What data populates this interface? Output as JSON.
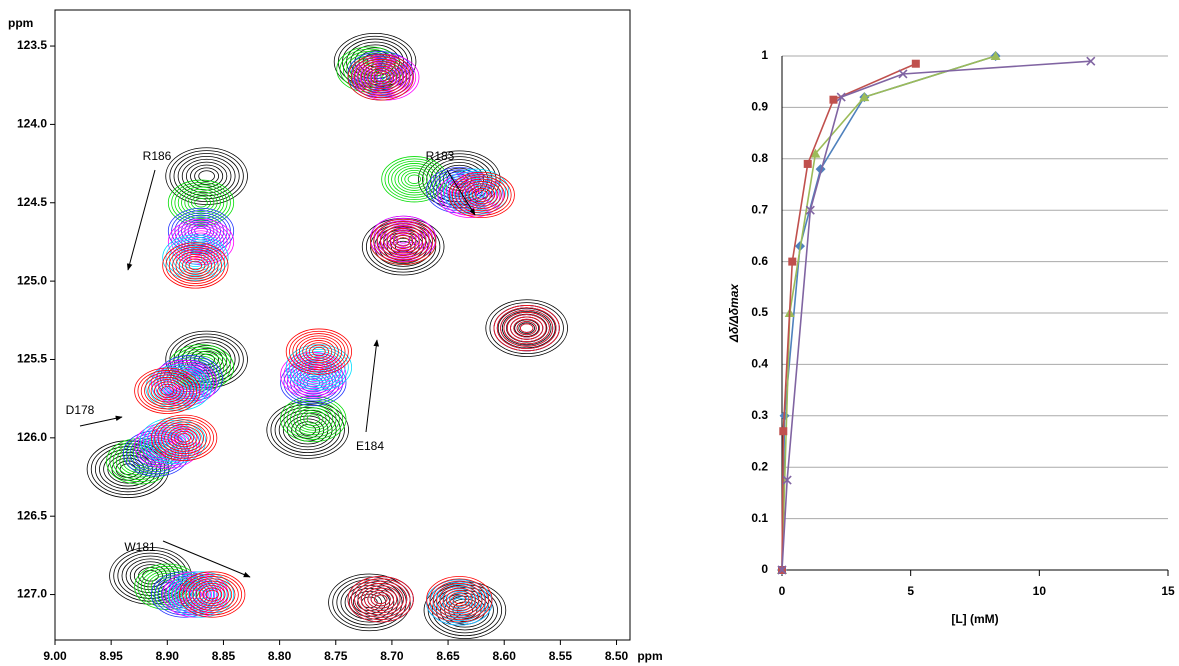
{
  "chart_data": [
    {
      "type": "contour",
      "x_label": "ppm",
      "y_label": "ppm",
      "xlim": [
        9.0,
        8.488
      ],
      "ylim": [
        123.27,
        127.29
      ],
      "xticks": [
        {
          "value": 9.0,
          "label": "9.00"
        },
        {
          "value": 8.95,
          "label": "8.95"
        },
        {
          "value": 8.9,
          "label": "8.90"
        },
        {
          "value": 8.85,
          "label": "8.85"
        },
        {
          "value": 8.8,
          "label": "8.80"
        },
        {
          "value": 8.75,
          "label": "8.75"
        },
        {
          "value": 8.7,
          "label": "8.70"
        },
        {
          "value": 8.65,
          "label": "8.65"
        },
        {
          "value": 8.6,
          "label": "8.60"
        },
        {
          "value": 8.55,
          "label": "8.55"
        },
        {
          "value": 8.5,
          "label": "8.50"
        }
      ],
      "yticks": [
        123.5,
        {
          "value": 124,
          "label": "124.0"
        },
        124.5,
        {
          "value": 125,
          "label": "125.0"
        },
        125.5,
        {
          "value": 126,
          "label": "126.0"
        },
        126.5,
        {
          "value": 127,
          "label": "127.0"
        }
      ],
      "annotations": [
        "R186",
        "R183",
        "D178",
        "E184",
        "W181"
      ],
      "series": [
        {
          "color": "#000000",
          "x": [
            8.715,
            8.865,
            8.64,
            8.69,
            8.58,
            8.865,
            8.935,
            8.775,
            8.915,
            8.72,
            8.635
          ],
          "y": [
            123.6,
            124.33,
            124.35,
            124.78,
            125.3,
            125.5,
            126.2,
            125.95,
            126.88,
            127.05,
            127.1
          ]
        },
        {
          "color": "#00dd00",
          "x": [
            8.72,
            8.87,
            8.68,
            8.69,
            8.58,
            8.87,
            8.925,
            8.77,
            8.9,
            8.71,
            8.64
          ],
          "y": [
            123.65,
            124.5,
            124.35,
            124.75,
            125.3,
            125.55,
            126.15,
            125.88,
            126.95,
            127.03,
            127.05
          ]
        },
        {
          "color": "#2233ff",
          "x": [
            8.71,
            8.87,
            8.64,
            8.69,
            8.58,
            8.88,
            8.91,
            8.77,
            8.885,
            8.71,
            8.64
          ],
          "y": [
            123.68,
            124.68,
            124.42,
            124.73,
            125.3,
            125.62,
            126.1,
            125.65,
            127.0,
            127.03,
            127.05
          ]
        },
        {
          "color": "#ff00ff",
          "x": [
            8.705,
            8.87,
            8.63,
            8.69,
            8.58,
            8.885,
            8.9,
            8.77,
            8.875,
            8.71,
            8.64
          ],
          "y": [
            123.7,
            124.75,
            124.45,
            124.73,
            125.3,
            125.65,
            126.05,
            125.6,
            127.0,
            127.03,
            127.05
          ]
        },
        {
          "color": "#00ddff",
          "x": [
            8.71,
            8.875,
            8.625,
            8.69,
            8.58,
            8.89,
            8.895,
            8.765,
            8.87,
            8.71,
            8.64
          ],
          "y": [
            123.7,
            124.85,
            124.43,
            124.75,
            125.3,
            125.68,
            126.02,
            125.55,
            127.0,
            127.03,
            127.05
          ]
        },
        {
          "color": "#ff0000",
          "x": [
            8.71,
            8.875,
            8.62,
            8.69,
            8.58,
            8.9,
            8.885,
            8.765,
            8.86,
            8.71,
            8.64
          ],
          "y": [
            123.7,
            124.9,
            124.45,
            124.75,
            125.3,
            125.7,
            126.0,
            125.45,
            127.0,
            127.03,
            127.03
          ]
        }
      ]
    },
    {
      "type": "line",
      "x_label": "[L] (mM)",
      "y_label": "Δδ/Δδmax",
      "xlim": [
        0,
        15
      ],
      "ylim": [
        0,
        1
      ],
      "xticks": [
        0,
        5,
        10,
        15
      ],
      "yticks": [
        0,
        0.1,
        0.2,
        0.3,
        0.4,
        0.5,
        0.6,
        0.7,
        0.8,
        0.9,
        1
      ],
      "grid": true,
      "series": [
        {
          "color": "#4f81bd",
          "marker": "diamond",
          "x": [
            0,
            0.1,
            0.7,
            1.5,
            3.2,
            8.3
          ],
          "values": [
            0,
            0.3,
            0.63,
            0.78,
            0.92,
            1.0
          ]
        },
        {
          "color": "#9bbb59",
          "marker": "triangle",
          "x": [
            0,
            0.3,
            1.3,
            3.2,
            8.3
          ],
          "values": [
            0,
            0.5,
            0.81,
            0.92,
            1.0
          ]
        },
        {
          "color": "#c0504d",
          "marker": "square",
          "x": [
            0,
            0.05,
            0.4,
            1.0,
            2.0,
            5.2
          ],
          "values": [
            0,
            0.27,
            0.6,
            0.79,
            0.915,
            0.985
          ]
        },
        {
          "color": "#8064a2",
          "marker": "x",
          "x": [
            0,
            0.2,
            1.1,
            2.3,
            4.7,
            12.0
          ],
          "values": [
            0,
            0.175,
            0.7,
            0.92,
            0.965,
            0.99
          ]
        }
      ]
    }
  ]
}
